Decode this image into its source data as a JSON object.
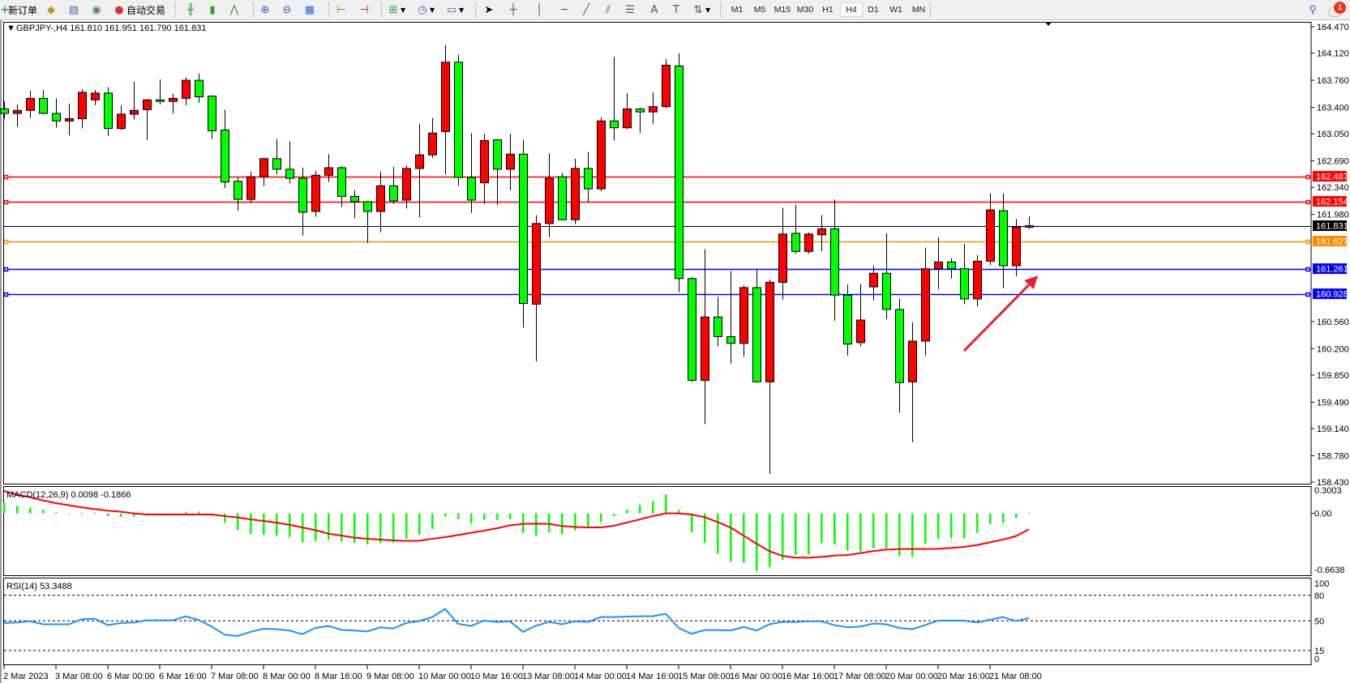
{
  "toolbar": {
    "new_order": "新订单",
    "auto_trading": "自动交易",
    "timeframes": [
      "M1",
      "M5",
      "M15",
      "M30",
      "H1",
      "H4",
      "D1",
      "W1",
      "MN"
    ],
    "active_timeframe": "H4",
    "notification_count": "1",
    "icons": [
      "new-order-icon",
      "market-watch-icon",
      "navigator-icon",
      "signals-icon",
      "auto-trading-icon",
      "bar-chart-icon",
      "candlestick-icon",
      "line-chart-icon",
      "zoom-in-icon",
      "zoom-out-icon",
      "tile-windows-icon",
      "chart-shift-icon",
      "autoscroll-icon",
      "indicators-icon",
      "periods-icon",
      "templates-icon",
      "cursor-icon",
      "crosshair-icon",
      "vertical-line-icon",
      "horizontal-line-icon",
      "trendline-icon",
      "equidistant-channel-icon",
      "fibonacci-icon",
      "text-icon",
      "text-label-icon",
      "arrows-icon",
      "search-icon",
      "chat-icon"
    ]
  },
  "chart": {
    "header": "GBPJPY-,H4  161.810 161.951 161.790 161.831",
    "macd_label": "MACD(12,26,9) 0.0098 -0.1866",
    "rsi_label": "RSI(14) 53.3488",
    "colors": {
      "bull": "#ff0000",
      "bear": "#00ff00",
      "macd_hist": "#00ff00",
      "macd_signal": "#ff0000",
      "rsi": "#1e90ff"
    }
  },
  "chart_data": [
    {
      "type": "candlestick",
      "symbol": "GBPJPY-",
      "timeframe": "H4",
      "ylim": [
        158.43,
        164.47
      ],
      "price_ticks": [
        "164.470",
        "164.120",
        "163.760",
        "163.400",
        "163.050",
        "162.690",
        "162.340",
        "161.980",
        "160.560",
        "160.200",
        "159.850",
        "159.490",
        "159.140",
        "158.780",
        "158.430"
      ],
      "time_labels": [
        {
          "bar": 0,
          "label": "2 Mar 2023"
        },
        {
          "bar": 4,
          "label": "3 Mar 08:00"
        },
        {
          "bar": 8,
          "label": "6 Mar 00:00"
        },
        {
          "bar": 12,
          "label": "6 Mar 16:00"
        },
        {
          "bar": 16,
          "label": "7 Mar 08:00"
        },
        {
          "bar": 20,
          "label": "8 Mar 00:00"
        },
        {
          "bar": 24,
          "label": "8 Mar 16:00"
        },
        {
          "bar": 28,
          "label": "9 Mar 08:00"
        },
        {
          "bar": 32,
          "label": "10 Mar 00:00"
        },
        {
          "bar": 36,
          "label": "10 Mar 16:00"
        },
        {
          "bar": 40,
          "label": "13 Mar 08:00"
        },
        {
          "bar": 44,
          "label": "14 Mar 00:00"
        },
        {
          "bar": 48,
          "label": "14 Mar 16:00"
        },
        {
          "bar": 52,
          "label": "15 Mar 08:00"
        },
        {
          "bar": 56,
          "label": "16 Mar 00:00"
        },
        {
          "bar": 60,
          "label": "16 Mar 16:00"
        },
        {
          "bar": 64,
          "label": "17 Mar 08:00"
        },
        {
          "bar": 68,
          "label": "20 Mar 00:00"
        },
        {
          "bar": 72,
          "label": "20 Mar 16:00"
        },
        {
          "bar": 76,
          "label": "21 Mar 08:00"
        }
      ],
      "levels": [
        {
          "price": 162.487,
          "label": "162.487",
          "color": "#ff0000"
        },
        {
          "price": 162.154,
          "label": "162.154",
          "color": "#ff0000"
        },
        {
          "price": 161.831,
          "label": "161.831",
          "color": "#000000"
        },
        {
          "price": 161.627,
          "label": "161.627",
          "color": "#ff8c00"
        },
        {
          "price": 161.261,
          "label": "161.261",
          "color": "#0000ff"
        },
        {
          "price": 160.928,
          "label": "160.928",
          "color": "#0000ff"
        }
      ],
      "annotation": {
        "type": "arrow",
        "color": "#e8202a",
        "from_bar": 74,
        "to_bar": 79.7,
        "from_price": 160.17,
        "to_price": 161.17
      },
      "ohlc": [
        [
          163.38,
          163.48,
          163.25,
          163.32
        ],
        [
          163.32,
          163.44,
          163.14,
          163.36
        ],
        [
          163.36,
          163.62,
          163.26,
          163.52
        ],
        [
          163.52,
          163.63,
          163.31,
          163.32
        ],
        [
          163.32,
          163.52,
          163.13,
          163.22
        ],
        [
          163.22,
          163.45,
          163.03,
          163.25
        ],
        [
          163.25,
          163.64,
          163.12,
          163.6
        ],
        [
          163.5,
          163.63,
          163.43,
          163.59
        ],
        [
          163.59,
          163.67,
          163.02,
          163.12
        ],
        [
          163.12,
          163.43,
          163.1,
          163.31
        ],
        [
          163.31,
          163.74,
          163.24,
          163.36
        ],
        [
          163.37,
          163.51,
          162.97,
          163.5
        ],
        [
          163.5,
          163.77,
          163.44,
          163.48
        ],
        [
          163.48,
          163.58,
          163.32,
          163.52
        ],
        [
          163.52,
          163.8,
          163.43,
          163.76
        ],
        [
          163.76,
          163.85,
          163.46,
          163.54
        ],
        [
          163.55,
          163.56,
          162.98,
          163.09
        ],
        [
          163.1,
          163.37,
          162.33,
          162.41
        ],
        [
          162.42,
          162.47,
          162.03,
          162.18
        ],
        [
          162.18,
          162.55,
          162.13,
          162.48
        ],
        [
          162.48,
          162.73,
          162.36,
          162.72
        ],
        [
          162.72,
          162.98,
          162.51,
          162.58
        ],
        [
          162.58,
          162.95,
          162.39,
          162.46
        ],
        [
          162.46,
          162.6,
          161.7,
          162.01
        ],
        [
          162.02,
          162.56,
          161.95,
          162.5
        ],
        [
          162.5,
          162.78,
          162.41,
          162.6
        ],
        [
          162.6,
          162.62,
          162.08,
          162.22
        ],
        [
          162.22,
          162.3,
          161.93,
          162.15
        ],
        [
          162.15,
          162.16,
          161.6,
          162.02
        ],
        [
          162.02,
          162.55,
          161.74,
          162.36
        ],
        [
          162.36,
          162.61,
          162.12,
          162.16
        ],
        [
          162.17,
          162.63,
          162.06,
          162.59
        ],
        [
          162.59,
          163.18,
          161.94,
          162.77
        ],
        [
          162.77,
          163.26,
          162.73,
          163.06
        ],
        [
          163.08,
          164.23,
          162.51,
          164.0
        ],
        [
          164.0,
          164.1,
          162.36,
          162.47
        ],
        [
          162.47,
          163.06,
          162.0,
          162.17
        ],
        [
          162.4,
          163.05,
          162.12,
          162.96
        ],
        [
          162.97,
          162.98,
          162.1,
          162.58
        ],
        [
          162.58,
          163.05,
          162.3,
          162.78
        ],
        [
          162.78,
          162.97,
          160.48,
          160.8
        ],
        [
          160.79,
          161.97,
          160.03,
          161.86
        ],
        [
          161.86,
          162.79,
          161.68,
          162.46
        ],
        [
          162.48,
          162.53,
          161.9,
          161.91
        ],
        [
          161.91,
          162.72,
          161.85,
          162.59
        ],
        [
          162.59,
          162.81,
          162.14,
          162.32
        ],
        [
          162.32,
          163.27,
          162.29,
          163.22
        ],
        [
          163.22,
          164.07,
          162.96,
          163.13
        ],
        [
          163.13,
          163.59,
          163.11,
          163.38
        ],
        [
          163.38,
          163.4,
          163.06,
          163.34
        ],
        [
          163.34,
          163.6,
          163.18,
          163.41
        ],
        [
          163.41,
          164.04,
          163.39,
          163.96
        ],
        [
          163.95,
          164.12,
          160.95,
          161.13
        ],
        [
          161.13,
          161.15,
          159.76,
          159.78
        ],
        [
          159.78,
          161.52,
          159.2,
          160.62
        ],
        [
          160.62,
          160.89,
          160.23,
          160.36
        ],
        [
          160.36,
          161.23,
          160.0,
          160.27
        ],
        [
          160.27,
          161.04,
          160.09,
          161.01
        ],
        [
          161.01,
          161.24,
          159.75,
          159.76
        ],
        [
          159.76,
          161.12,
          158.54,
          161.08
        ],
        [
          161.08,
          162.07,
          160.85,
          161.72
        ],
        [
          161.73,
          162.11,
          161.46,
          161.49
        ],
        [
          161.49,
          161.74,
          161.46,
          161.72
        ],
        [
          161.71,
          161.97,
          161.49,
          161.79
        ],
        [
          161.79,
          162.18,
          160.57,
          160.91
        ],
        [
          160.91,
          161.05,
          160.11,
          160.26
        ],
        [
          160.28,
          161.06,
          160.23,
          160.58
        ],
        [
          161.02,
          161.3,
          160.84,
          161.2
        ],
        [
          161.2,
          161.73,
          160.59,
          160.72
        ],
        [
          160.72,
          160.86,
          159.35,
          159.75
        ],
        [
          159.76,
          160.55,
          158.96,
          160.3
        ],
        [
          160.3,
          161.54,
          160.11,
          161.26
        ],
        [
          161.26,
          161.68,
          160.99,
          161.35
        ],
        [
          161.35,
          161.4,
          161.13,
          161.26
        ],
        [
          161.26,
          161.59,
          160.79,
          160.86
        ],
        [
          160.86,
          161.44,
          160.76,
          161.36
        ],
        [
          161.36,
          162.26,
          161.31,
          162.04
        ],
        [
          162.03,
          162.26,
          161.0,
          161.3
        ],
        [
          161.3,
          161.92,
          161.16,
          161.81
        ],
        [
          161.81,
          161.951,
          161.79,
          161.831
        ]
      ]
    },
    {
      "type": "bar+line",
      "name": "MACD(12,26,9)",
      "ylim": [
        -0.6638,
        0.3003
      ],
      "ticks": [
        "0.3003",
        "0.00",
        "-0.6638"
      ],
      "histogram": [
        0.126,
        0.088,
        0.07,
        0.044,
        0.013,
        0.003,
        0.005,
        0.01,
        -0.032,
        -0.041,
        -0.038,
        -0.025,
        0.003,
        0.003,
        0.019,
        0.022,
        -0.022,
        -0.107,
        -0.193,
        -0.24,
        -0.25,
        -0.259,
        -0.275,
        -0.335,
        -0.322,
        -0.306,
        -0.328,
        -0.344,
        -0.363,
        -0.348,
        -0.341,
        -0.297,
        -0.25,
        -0.183,
        -0.038,
        -0.069,
        -0.117,
        -0.076,
        -0.076,
        -0.069,
        -0.227,
        -0.259,
        -0.221,
        -0.246,
        -0.196,
        -0.164,
        -0.101,
        -0.032,
        0.041,
        0.098,
        0.145,
        0.221,
        0.041,
        -0.221,
        -0.344,
        -0.47,
        -0.565,
        -0.575,
        -0.676,
        -0.628,
        -0.543,
        -0.486,
        -0.48,
        -0.347,
        -0.363,
        -0.433,
        -0.448,
        -0.41,
        -0.41,
        -0.496,
        -0.505,
        -0.353,
        -0.3,
        -0.29,
        -0.29,
        -0.227,
        -0.126,
        -0.11,
        -0.05,
        0.0098
      ],
      "signal": [
        0.262,
        0.221,
        0.19,
        0.152,
        0.12,
        0.095,
        0.07,
        0.05,
        0.032,
        0.019,
        0,
        -0.013,
        -0.013,
        -0.013,
        -0.013,
        -0.013,
        -0.013,
        -0.032,
        -0.047,
        -0.07,
        -0.088,
        -0.107,
        -0.133,
        -0.164,
        -0.196,
        -0.237,
        -0.259,
        -0.284,
        -0.297,
        -0.306,
        -0.316,
        -0.322,
        -0.319,
        -0.297,
        -0.278,
        -0.253,
        -0.227,
        -0.202,
        -0.174,
        -0.139,
        -0.123,
        -0.12,
        -0.123,
        -0.148,
        -0.158,
        -0.164,
        -0.164,
        -0.145,
        -0.107,
        -0.07,
        -0.032,
        0,
        0,
        -0.013,
        -0.044,
        -0.101,
        -0.164,
        -0.259,
        -0.354,
        -0.442,
        -0.496,
        -0.518,
        -0.518,
        -0.509,
        -0.493,
        -0.487,
        -0.465,
        -0.44,
        -0.424,
        -0.417,
        -0.417,
        -0.417,
        -0.414,
        -0.405,
        -0.392,
        -0.37,
        -0.338,
        -0.306,
        -0.265,
        -0.1866
      ]
    },
    {
      "type": "line",
      "name": "RSI(14)",
      "ylim": [
        0,
        100
      ],
      "ticks": [
        "100",
        "80",
        "50",
        "15",
        "0"
      ],
      "levels": [
        80,
        50,
        15
      ],
      "values": [
        47.5,
        48,
        49.7,
        46,
        46,
        46,
        52,
        52.5,
        45,
        47.5,
        48,
        50.6,
        50.6,
        50.6,
        55.4,
        51,
        43.3,
        33.8,
        32.2,
        37,
        40.8,
        40.2,
        38.6,
        34.4,
        41.7,
        44,
        39.5,
        38.6,
        37.6,
        42.4,
        41,
        47.5,
        49.7,
        54.4,
        64,
        46.5,
        44,
        50.3,
        48.7,
        49.4,
        37,
        44.3,
        48.7,
        46,
        49.4,
        48.7,
        54.4,
        54.4,
        55,
        55.4,
        55.4,
        58.3,
        41.7,
        34.8,
        39.2,
        39.2,
        38.6,
        42.7,
        38.6,
        46,
        48.7,
        48.7,
        49.4,
        49.4,
        45,
        42.4,
        43.3,
        46.8,
        46,
        41.7,
        40.2,
        45,
        50.3,
        50.3,
        50.3,
        48,
        51.3,
        54.4,
        49.7,
        53.3488
      ]
    }
  ]
}
